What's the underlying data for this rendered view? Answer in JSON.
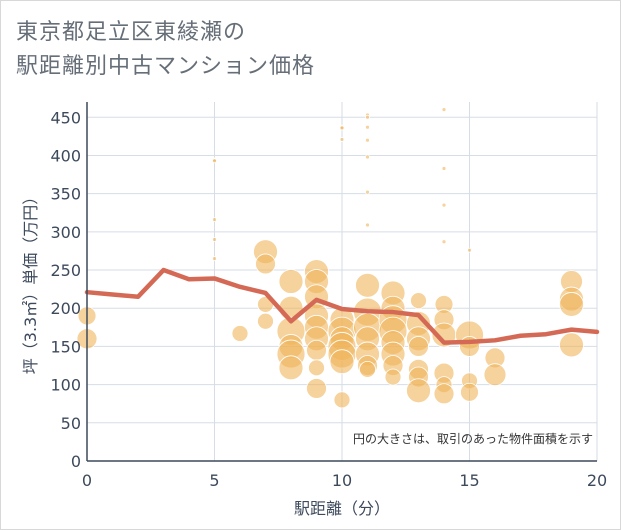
{
  "header": {
    "title_line1": "東京都足立区東綾瀬の",
    "title_line2": "駅距離別中古マンション価格"
  },
  "chart_data": {
    "type": "scatter",
    "xlabel": "駅距離（分）",
    "ylabel": "坪（3.3㎡）単価（万円）",
    "xlim": [
      0,
      20
    ],
    "ylim": [
      0,
      470
    ],
    "x_ticks": [
      0,
      5,
      10,
      15,
      20
    ],
    "y_ticks": [
      0,
      50,
      100,
      150,
      200,
      250,
      300,
      350,
      400,
      450
    ],
    "grid": true,
    "note": "円の大きさは、取引のあった物件面積を示す",
    "colors": {
      "bubble": "#f0b45a",
      "line": "#d46a55",
      "grid": "#d6dde6"
    },
    "line_series": {
      "x": [
        0,
        1,
        2,
        3,
        4,
        5,
        6,
        7,
        8,
        9,
        10,
        11,
        12,
        13,
        14,
        15,
        16,
        17,
        18,
        19,
        20
      ],
      "y": [
        221,
        218,
        215,
        250,
        238,
        239,
        228,
        220,
        183,
        211,
        199,
        196,
        195,
        191,
        155,
        156,
        158,
        164,
        166,
        172,
        169
      ]
    },
    "bubbles": [
      {
        "x": 0,
        "y": 190,
        "s": 9
      },
      {
        "x": 0,
        "y": 160,
        "s": 10
      },
      {
        "x": 5,
        "y": 394,
        "s": 2
      },
      {
        "x": 5,
        "y": 393,
        "s": 2
      },
      {
        "x": 5,
        "y": 316,
        "s": 2
      },
      {
        "x": 5,
        "y": 290,
        "s": 2
      },
      {
        "x": 5,
        "y": 265,
        "s": 2
      },
      {
        "x": 6,
        "y": 167,
        "s": 8
      },
      {
        "x": 7,
        "y": 274,
        "s": 12
      },
      {
        "x": 7,
        "y": 258,
        "s": 10
      },
      {
        "x": 7,
        "y": 205,
        "s": 8
      },
      {
        "x": 7,
        "y": 183,
        "s": 8
      },
      {
        "x": 8,
        "y": 235,
        "s": 12
      },
      {
        "x": 8,
        "y": 200,
        "s": 12
      },
      {
        "x": 8,
        "y": 170,
        "s": 14
      },
      {
        "x": 8,
        "y": 150,
        "s": 12
      },
      {
        "x": 8,
        "y": 140,
        "s": 14
      },
      {
        "x": 8,
        "y": 122,
        "s": 12
      },
      {
        "x": 9,
        "y": 248,
        "s": 12
      },
      {
        "x": 9,
        "y": 235,
        "s": 12
      },
      {
        "x": 9,
        "y": 215,
        "s": 12
      },
      {
        "x": 9,
        "y": 190,
        "s": 12
      },
      {
        "x": 9,
        "y": 175,
        "s": 12
      },
      {
        "x": 9,
        "y": 160,
        "s": 12
      },
      {
        "x": 9,
        "y": 145,
        "s": 10
      },
      {
        "x": 9,
        "y": 122,
        "s": 8
      },
      {
        "x": 9,
        "y": 95,
        "s": 10
      },
      {
        "x": 10,
        "y": 437,
        "s": 2
      },
      {
        "x": 10,
        "y": 436,
        "s": 2
      },
      {
        "x": 10,
        "y": 421,
        "s": 2
      },
      {
        "x": 10,
        "y": 185,
        "s": 12
      },
      {
        "x": 10,
        "y": 170,
        "s": 14
      },
      {
        "x": 10,
        "y": 160,
        "s": 12
      },
      {
        "x": 10,
        "y": 150,
        "s": 14
      },
      {
        "x": 10,
        "y": 140,
        "s": 14
      },
      {
        "x": 10,
        "y": 130,
        "s": 12
      },
      {
        "x": 10,
        "y": 80,
        "s": 8
      },
      {
        "x": 11,
        "y": 453,
        "s": 2
      },
      {
        "x": 11,
        "y": 450,
        "s": 2
      },
      {
        "x": 11,
        "y": 437,
        "s": 2
      },
      {
        "x": 11,
        "y": 420,
        "s": 2
      },
      {
        "x": 11,
        "y": 398,
        "s": 2
      },
      {
        "x": 11,
        "y": 352,
        "s": 2
      },
      {
        "x": 11,
        "y": 309,
        "s": 2
      },
      {
        "x": 11,
        "y": 230,
        "s": 12
      },
      {
        "x": 11,
        "y": 195,
        "s": 14
      },
      {
        "x": 11,
        "y": 175,
        "s": 14
      },
      {
        "x": 11,
        "y": 160,
        "s": 12
      },
      {
        "x": 11,
        "y": 140,
        "s": 12
      },
      {
        "x": 11,
        "y": 125,
        "s": 10
      },
      {
        "x": 11,
        "y": 120,
        "s": 8
      },
      {
        "x": 12,
        "y": 220,
        "s": 12
      },
      {
        "x": 12,
        "y": 200,
        "s": 12
      },
      {
        "x": 12,
        "y": 185,
        "s": 14
      },
      {
        "x": 12,
        "y": 170,
        "s": 14
      },
      {
        "x": 12,
        "y": 155,
        "s": 12
      },
      {
        "x": 12,
        "y": 140,
        "s": 12
      },
      {
        "x": 12,
        "y": 125,
        "s": 10
      },
      {
        "x": 12,
        "y": 110,
        "s": 8
      },
      {
        "x": 13,
        "y": 210,
        "s": 8
      },
      {
        "x": 13,
        "y": 180,
        "s": 12
      },
      {
        "x": 13,
        "y": 160,
        "s": 12
      },
      {
        "x": 13,
        "y": 150,
        "s": 10
      },
      {
        "x": 13,
        "y": 120,
        "s": 10
      },
      {
        "x": 13,
        "y": 110,
        "s": 10
      },
      {
        "x": 13,
        "y": 92,
        "s": 12
      },
      {
        "x": 14,
        "y": 460,
        "s": 2
      },
      {
        "x": 14,
        "y": 383,
        "s": 2
      },
      {
        "x": 14,
        "y": 335,
        "s": 2
      },
      {
        "x": 14,
        "y": 287,
        "s": 2
      },
      {
        "x": 14,
        "y": 205,
        "s": 9
      },
      {
        "x": 14,
        "y": 185,
        "s": 10
      },
      {
        "x": 14,
        "y": 165,
        "s": 12
      },
      {
        "x": 14,
        "y": 115,
        "s": 10
      },
      {
        "x": 14,
        "y": 100,
        "s": 8
      },
      {
        "x": 14,
        "y": 88,
        "s": 10
      },
      {
        "x": 15,
        "y": 276,
        "s": 2
      },
      {
        "x": 15,
        "y": 165,
        "s": 14
      },
      {
        "x": 15,
        "y": 150,
        "s": 10
      },
      {
        "x": 15,
        "y": 105,
        "s": 8
      },
      {
        "x": 15,
        "y": 90,
        "s": 9
      },
      {
        "x": 16,
        "y": 135,
        "s": 10
      },
      {
        "x": 16,
        "y": 113,
        "s": 11
      },
      {
        "x": 19,
        "y": 235,
        "s": 11
      },
      {
        "x": 19,
        "y": 212,
        "s": 12
      },
      {
        "x": 19,
        "y": 205,
        "s": 12
      },
      {
        "x": 19,
        "y": 152,
        "s": 12
      }
    ]
  }
}
